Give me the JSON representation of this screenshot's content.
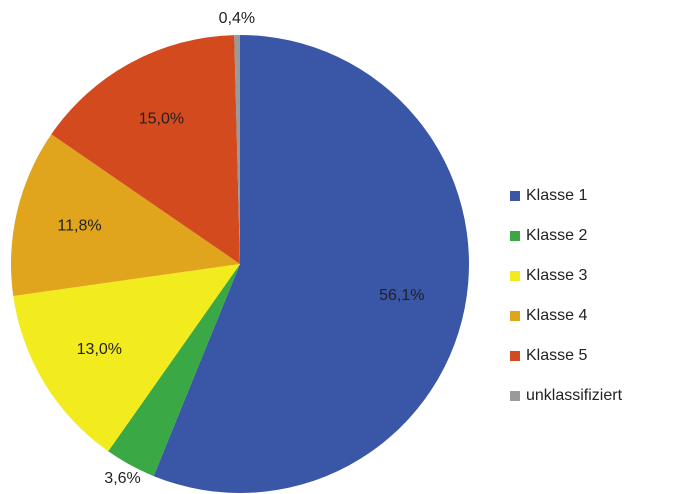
{
  "chart_data": {
    "type": "pie",
    "categories": [
      "Klasse 1",
      "Klasse 2",
      "Klasse 3",
      "Klasse 4",
      "Klasse 5",
      "unklassifiziert"
    ],
    "values": [
      56.1,
      3.6,
      13.0,
      11.8,
      15.0,
      0.4
    ],
    "value_labels": [
      "56,1%",
      "3,6%",
      "13,0%",
      "11,8%",
      "15,0%",
      "0,4%"
    ],
    "colors": [
      "#3a56a6",
      "#3aa845",
      "#f2ec1e",
      "#e0a51c",
      "#d44a1f",
      "#9a9a9a"
    ],
    "legend": "right"
  }
}
